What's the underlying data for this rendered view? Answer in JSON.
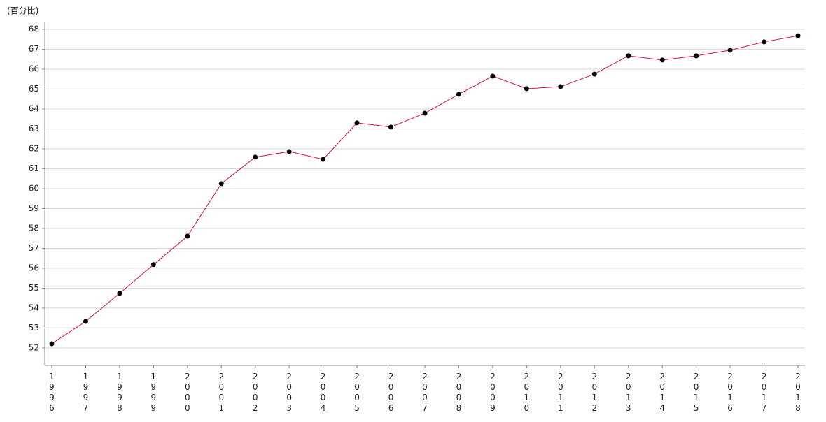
{
  "chart_data": {
    "type": "line",
    "y_label": "(百分比)",
    "categories": [
      "1996",
      "1997",
      "1998",
      "1999",
      "2000",
      "2001",
      "2002",
      "2003",
      "2004",
      "2005",
      "2006",
      "2007",
      "2008",
      "2009",
      "2010",
      "2011",
      "2012",
      "2013",
      "2014",
      "2015",
      "2016",
      "2017",
      "2018"
    ],
    "series": [
      {
        "color": "#d6103f",
        "marker_color": "#000000",
        "values": [
          52.21,
          53.33,
          54.74,
          56.18,
          57.61,
          60.25,
          61.58,
          61.86,
          61.47,
          63.3,
          63.09,
          63.79,
          64.74,
          65.65,
          65.02,
          65.12,
          65.75,
          66.67,
          66.46,
          66.67,
          66.95,
          67.37,
          67.68
        ]
      }
    ],
    "ylim": [
      51.12,
      68.35
    ],
    "yticks": [
      52,
      53,
      54,
      55,
      56,
      57,
      58,
      59,
      60,
      61,
      62,
      63,
      64,
      65,
      66,
      67,
      68
    ],
    "grid": true
  }
}
